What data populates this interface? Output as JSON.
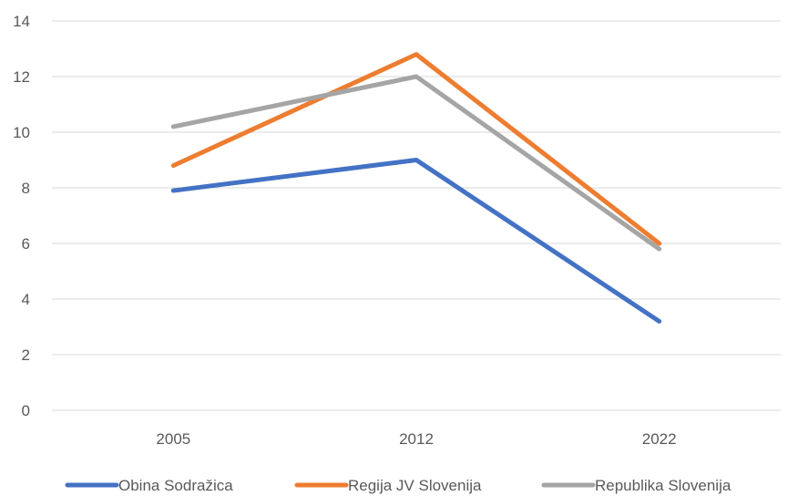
{
  "chart_data": {
    "type": "line",
    "title": "",
    "xlabel": "",
    "ylabel": "",
    "categories": [
      "2005",
      "2012",
      "2022"
    ],
    "ylim": [
      0,
      14
    ],
    "yticks": [
      0,
      2,
      4,
      6,
      8,
      10,
      12,
      14
    ],
    "grid": true,
    "legend_position": "bottom",
    "series": [
      {
        "name": "Obina Sodražica",
        "values": [
          7.9,
          9.0,
          3.2
        ],
        "color": "#4472c4"
      },
      {
        "name": "Regija JV Slovenija",
        "values": [
          8.8,
          12.8,
          6.0
        ],
        "color": "#ed7d31"
      },
      {
        "name": "Republika Slovenija",
        "values": [
          10.2,
          12.0,
          5.8
        ],
        "color": "#a5a5a5"
      }
    ]
  }
}
